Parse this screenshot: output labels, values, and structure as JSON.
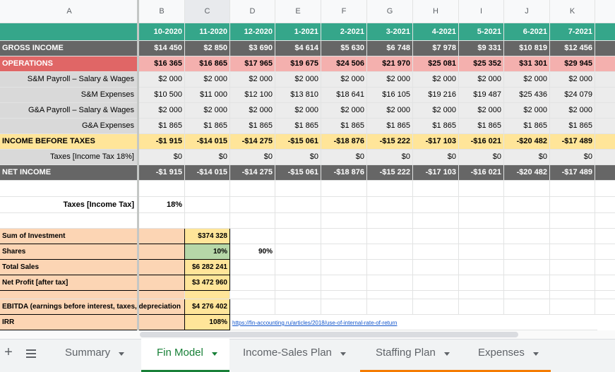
{
  "columns": [
    "A",
    "B",
    "C",
    "D",
    "E",
    "F",
    "G",
    "H",
    "I",
    "J",
    "K"
  ],
  "periods": [
    "10-2020",
    "11-2020",
    "12-2020",
    "1-2021",
    "2-2021",
    "3-2021",
    "4-2021",
    "5-2021",
    "6-2021",
    "7-2021"
  ],
  "rows": [
    {
      "label": "GROSS INCOME",
      "values": [
        "$14 450",
        "$2 850",
        "$3 690",
        "$4 614",
        "$5 630",
        "$6 748",
        "$7 978",
        "$9 331",
        "$10 819",
        "$12 456"
      ]
    },
    {
      "label": "OPERATIONS",
      "values": [
        "$16 365",
        "$16 865",
        "$17 965",
        "$19 675",
        "$24 506",
        "$21 970",
        "$25 081",
        "$25 352",
        "$31 301",
        "$29 945"
      ]
    },
    {
      "label": "S&M Payroll – Salary & Wages",
      "values": [
        "$2 000",
        "$2 000",
        "$2 000",
        "$2 000",
        "$2 000",
        "$2 000",
        "$2 000",
        "$2 000",
        "$2 000",
        "$2 000"
      ]
    },
    {
      "label": "S&M Expenses",
      "values": [
        "$10 500",
        "$11 000",
        "$12 100",
        "$13 810",
        "$18 641",
        "$16 105",
        "$19 216",
        "$19 487",
        "$25 436",
        "$24 079"
      ]
    },
    {
      "label": "G&A Payroll – Salary & Wages",
      "values": [
        "$2 000",
        "$2 000",
        "$2 000",
        "$2 000",
        "$2 000",
        "$2 000",
        "$2 000",
        "$2 000",
        "$2 000",
        "$2 000"
      ]
    },
    {
      "label": "G&A Expenses",
      "values": [
        "$1 865",
        "$1 865",
        "$1 865",
        "$1 865",
        "$1 865",
        "$1 865",
        "$1 865",
        "$1 865",
        "$1 865",
        "$1 865"
      ]
    },
    {
      "label": "INCOME BEFORE TAXES",
      "values": [
        "-$1 915",
        "-$14 015",
        "-$14 275",
        "-$15 061",
        "-$18 876",
        "-$15 222",
        "-$17 103",
        "-$16 021",
        "-$20 482",
        "-$17 489"
      ]
    },
    {
      "label": "Taxes [Income Tax 18%]",
      "values": [
        "$0",
        "$0",
        "$0",
        "$0",
        "$0",
        "$0",
        "$0",
        "$0",
        "$0",
        "$0"
      ]
    },
    {
      "label": "NET INCOME",
      "values": [
        "-$1 915",
        "-$14 015",
        "-$14 275",
        "-$15 061",
        "-$18 876",
        "-$15 222",
        "-$17 103",
        "-$16 021",
        "-$20 482",
        "-$17 489"
      ]
    }
  ],
  "tax_rate": {
    "label": "Taxes [Income Tax]",
    "value": "18%"
  },
  "summary": [
    {
      "label": "Sum of Investment",
      "value": "$374 328"
    },
    {
      "label": "Shares",
      "value": "10%",
      "extra": "90%"
    },
    {
      "label": "Total Sales",
      "value": "$6 282 241"
    },
    {
      "label": "Net Profit [after tax]",
      "value": "$3 472 960"
    },
    {
      "label": "EBITDA (earnings before interest, taxes, depreciation",
      "value": "$4 276 402"
    },
    {
      "label": "IRR",
      "value": "108%",
      "link": "https://fin-accounting.ru/articles/2018/use-of-internal-rate-of-return"
    }
  ],
  "tabs": [
    "Summary",
    "Fin Model",
    "Income-Sales Plan",
    "Staffing Plan",
    "Expenses"
  ]
}
